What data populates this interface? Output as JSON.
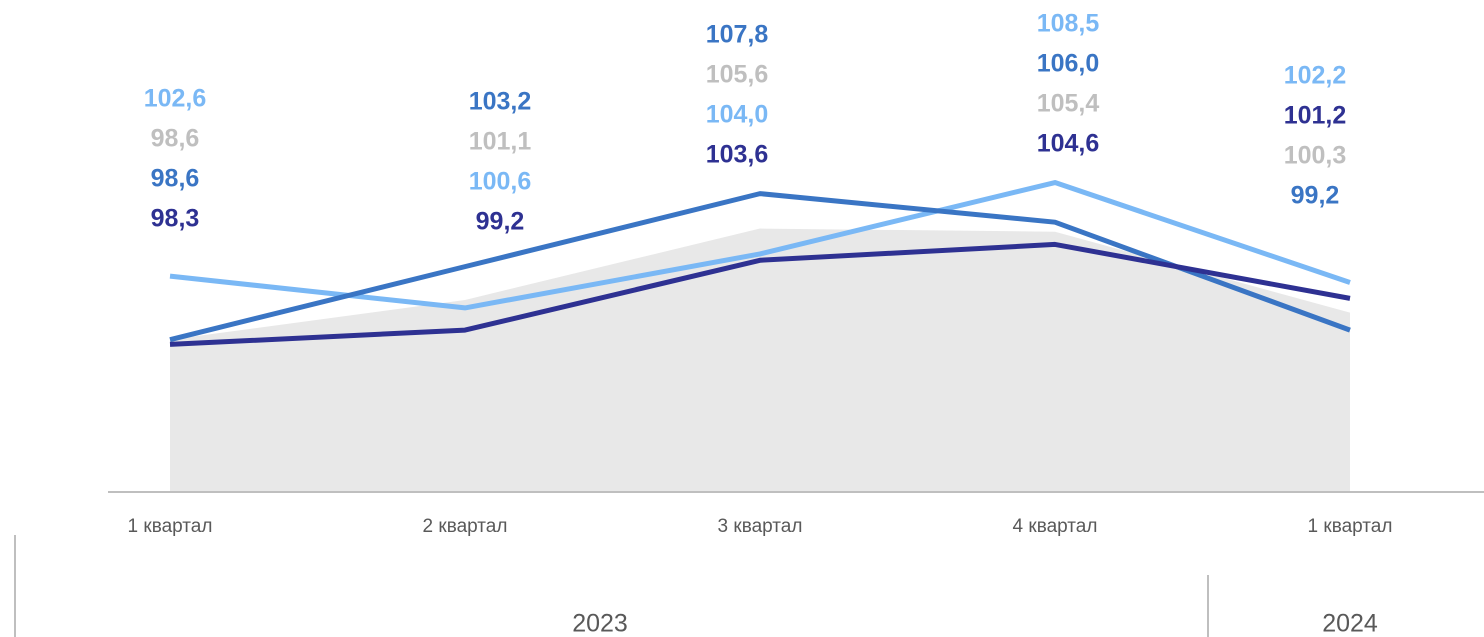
{
  "chart_data": {
    "type": "line",
    "categories": [
      "1 квартал",
      "2 квартал",
      "3 квартал",
      "4 квартал",
      "1 квартал"
    ],
    "groups": [
      {
        "label": "2023",
        "span": 4
      },
      {
        "label": "2024",
        "span": 1
      }
    ],
    "ylim": [
      89,
      120
    ],
    "series": [
      {
        "color": "#7ab8f5",
        "kind": "line",
        "values": [
          102.6,
          100.6,
          104.0,
          108.5,
          102.2
        ],
        "value_labels": [
          "102,6",
          "100,6",
          "104,0",
          "108,5",
          "102,2"
        ]
      },
      {
        "color": "#bfbfbf",
        "area_color": "#e8e8e8",
        "kind": "area",
        "values": [
          98.6,
          101.1,
          105.6,
          105.4,
          100.3
        ],
        "value_labels": [
          "98,6",
          "101,1",
          "105,6",
          "105,4",
          "100,3"
        ]
      },
      {
        "color": "#3a75c4",
        "kind": "line",
        "values": [
          98.6,
          103.2,
          107.8,
          106.0,
          99.2
        ],
        "value_labels": [
          "98,6",
          "103,2",
          "107,8",
          "106,0",
          "99,2"
        ]
      },
      {
        "color": "#2e3192",
        "kind": "line",
        "values": [
          98.3,
          99.2,
          103.6,
          104.6,
          101.2
        ],
        "value_labels": [
          "98,3",
          "99,2",
          "103,6",
          "104,6",
          "101,2"
        ]
      }
    ]
  }
}
